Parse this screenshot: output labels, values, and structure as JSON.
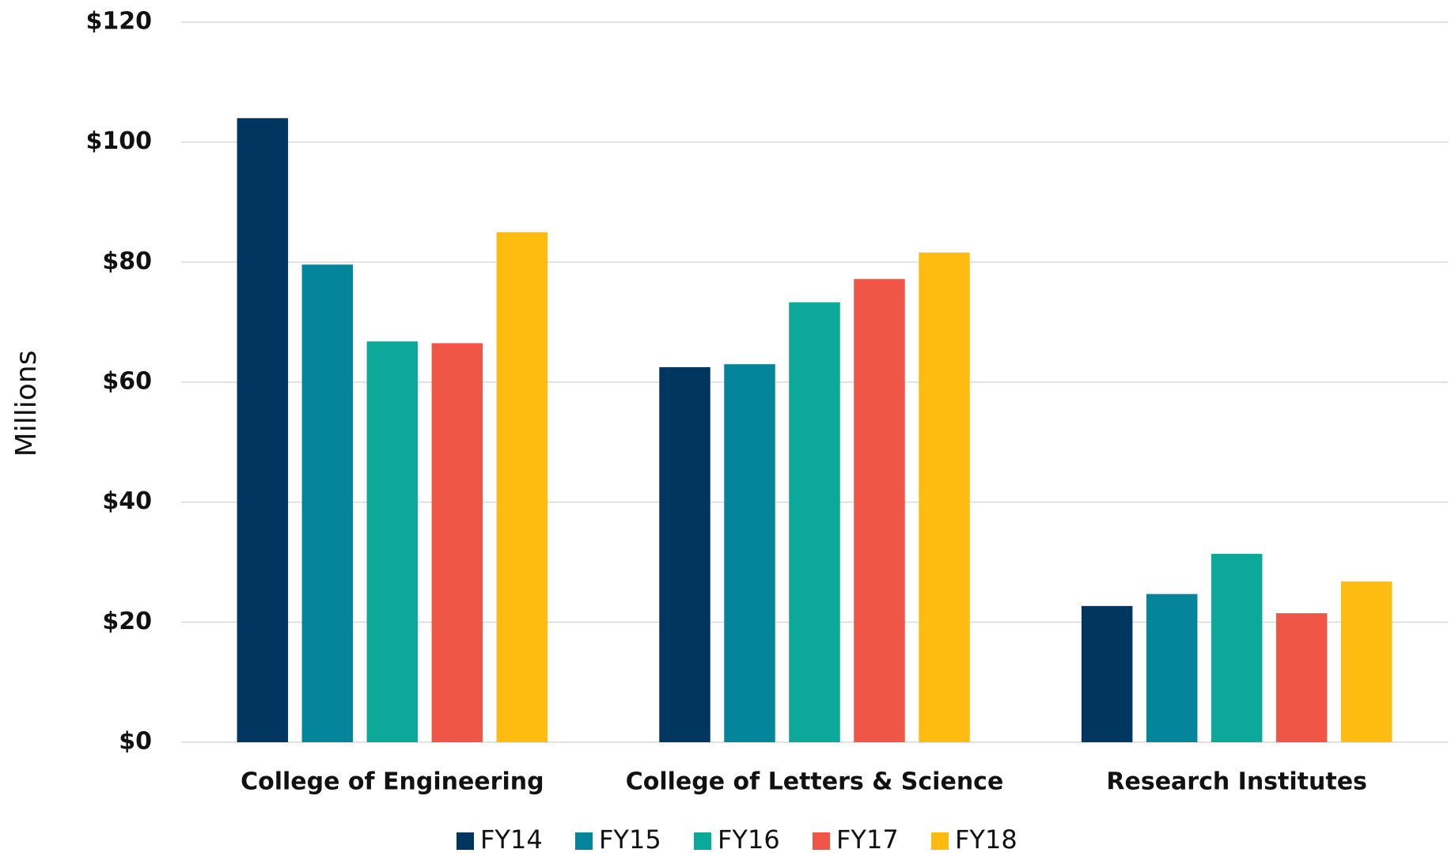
{
  "chart_data": {
    "type": "bar",
    "y_label": "Millions",
    "categories": [
      "College of Engineering",
      "College of Letters & Science",
      "Research Institutes"
    ],
    "series": [
      {
        "name": "FY14",
        "color": "#003660",
        "values": [
          104,
          62.5,
          22.7
        ]
      },
      {
        "name": "FY15",
        "color": "#04859b",
        "values": [
          79.6,
          63,
          24.7
        ]
      },
      {
        "name": "FY16",
        "color": "#0ca89a",
        "values": [
          66.8,
          73.3,
          31.4
        ]
      },
      {
        "name": "FY17",
        "color": "#ef5645",
        "values": [
          66.5,
          77.2,
          21.5
        ]
      },
      {
        "name": "FY18",
        "color": "#febc11",
        "values": [
          85,
          81.6,
          26.8
        ]
      }
    ],
    "ylim": [
      0,
      120
    ],
    "yticks": [
      {
        "value": 0,
        "label": "$0"
      },
      {
        "value": 20,
        "label": "$20"
      },
      {
        "value": 40,
        "label": "$40"
      },
      {
        "value": 60,
        "label": "$60"
      },
      {
        "value": 80,
        "label": "$80"
      },
      {
        "value": 100,
        "label": "$100"
      },
      {
        "value": 120,
        "label": "$120"
      }
    ],
    "grid": true,
    "legend": "bottom"
  }
}
